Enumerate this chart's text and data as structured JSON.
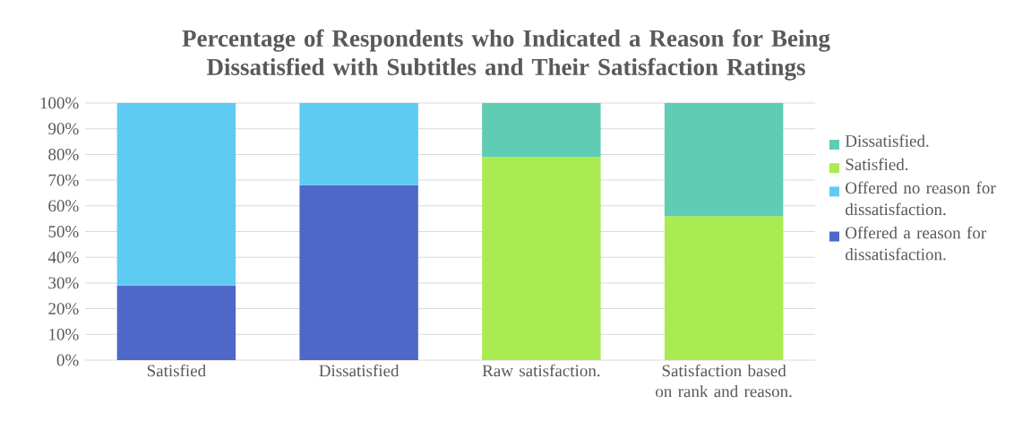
{
  "chart_data": {
    "type": "bar",
    "stacked": true,
    "title": "Percentage of Respondents who Indicated a Reason for Being Dissatisfied with Subtitles and Their Satisfaction Ratings",
    "categories": [
      "Satisfied",
      "Dissatisfied",
      "Raw satisfaction.",
      "Satisfaction based on rank and reason."
    ],
    "series": [
      {
        "name": "Offered a reason for dissatisfaction.",
        "color": "#4f67c8",
        "values": [
          29,
          68,
          null,
          null
        ]
      },
      {
        "name": "Offered no reason for dissatisfaction.",
        "color": "#5ecbf3",
        "values": [
          71,
          32,
          null,
          null
        ]
      },
      {
        "name": "Satisfied.",
        "color": "#aaeb52",
        "values": [
          null,
          null,
          79,
          56
        ]
      },
      {
        "name": "Dissatisfied.",
        "color": "#5ecdb4",
        "values": [
          null,
          null,
          21,
          44
        ]
      }
    ],
    "ylim": [
      0,
      100
    ],
    "yticks": [
      {
        "value": 0,
        "label": "0%"
      },
      {
        "value": 10,
        "label": "10%"
      },
      {
        "value": 20,
        "label": "20%"
      },
      {
        "value": 30,
        "label": "30%"
      },
      {
        "value": 40,
        "label": "40%"
      },
      {
        "value": 50,
        "label": "50%"
      },
      {
        "value": 60,
        "label": "60%"
      },
      {
        "value": 70,
        "label": "70%"
      },
      {
        "value": 80,
        "label": "80%"
      },
      {
        "value": 90,
        "label": "90%"
      },
      {
        "value": 100,
        "label": "100%"
      }
    ],
    "grid": "y",
    "legend": "right"
  }
}
